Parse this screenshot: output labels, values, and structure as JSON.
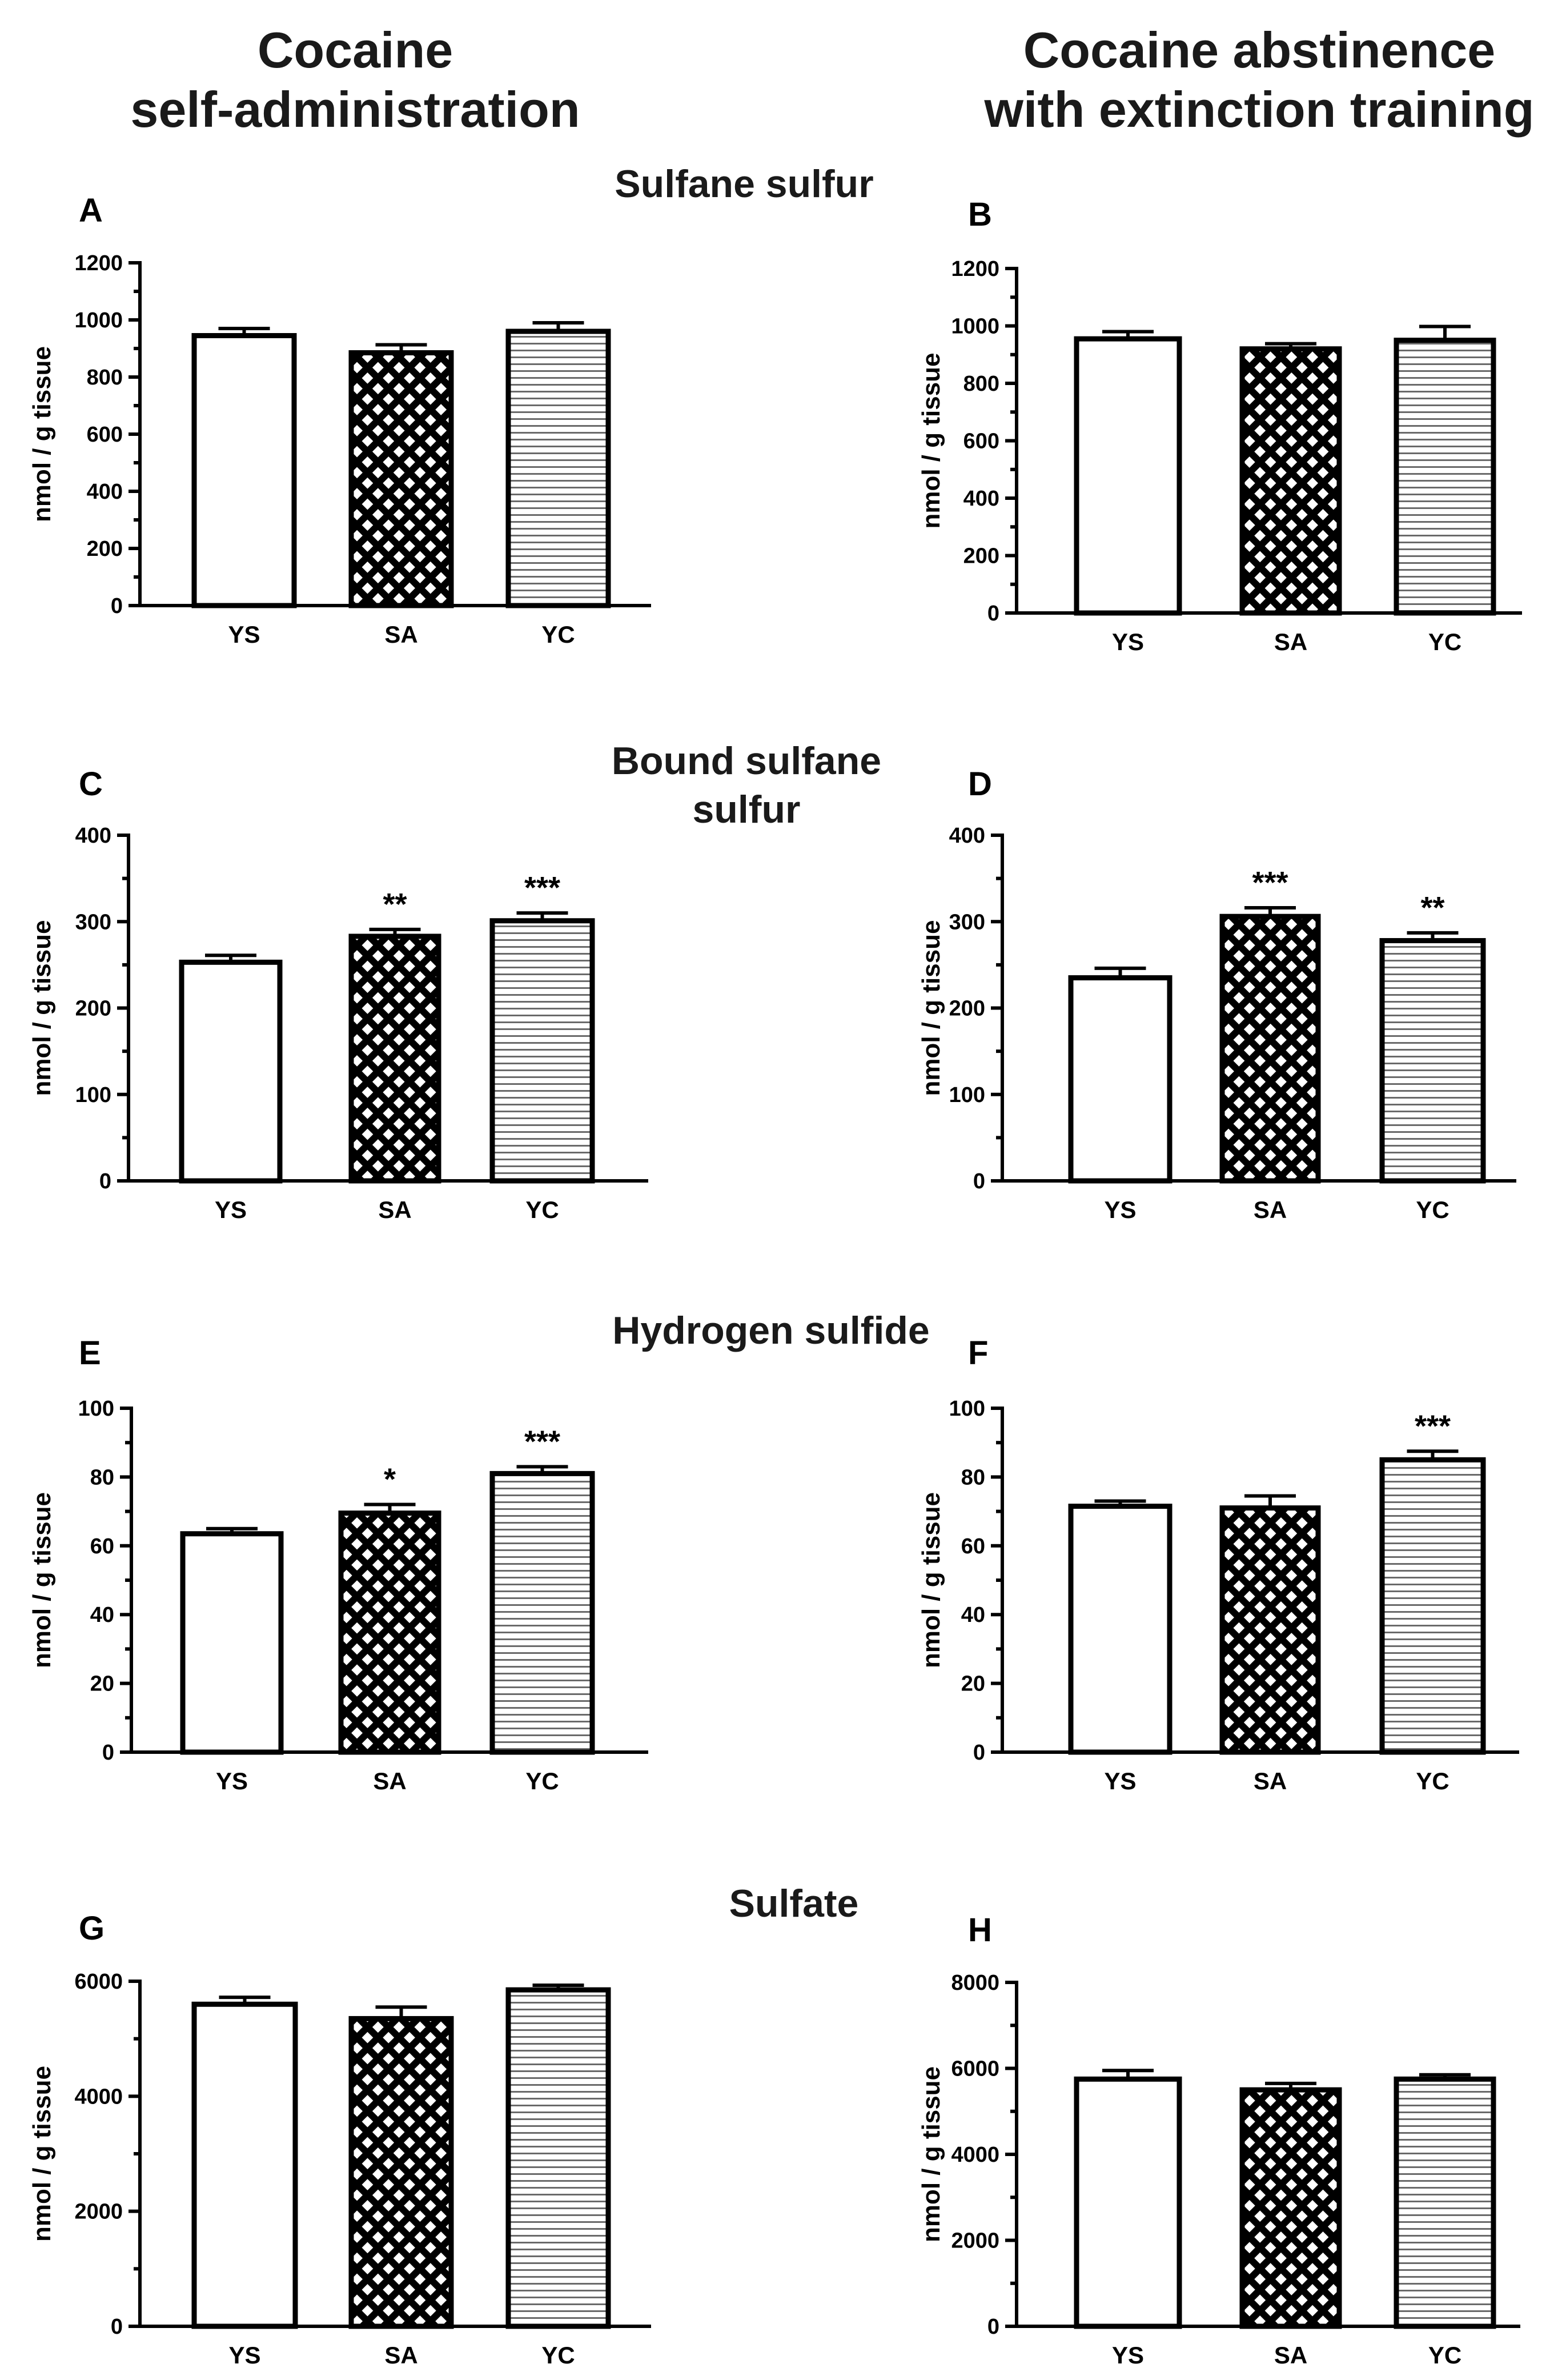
{
  "column_titles": {
    "left": [
      "Cocaine",
      "self-administration"
    ],
    "right": [
      "Cocaine abstinence",
      "with extinction training"
    ]
  },
  "row_titles": [
    [
      "Sulfane sulfur"
    ],
    [
      "Bound sulfane",
      "sulfur"
    ],
    [
      "Hydrogen sulfide"
    ],
    [
      "Sulfate"
    ]
  ],
  "chart_data": [
    {
      "panel": "A",
      "type": "bar",
      "row_title": "Sulfane sulfur",
      "column": "Cocaine self-administration",
      "categories": [
        "YS",
        "SA",
        "YC"
      ],
      "values": [
        945,
        885,
        960
      ],
      "errors": [
        25,
        28,
        30
      ],
      "significance": [
        "",
        "",
        ""
      ],
      "ylabel": "nmol / g tissue",
      "ylim": [
        0,
        1200
      ],
      "yticks": [
        0,
        200,
        400,
        600,
        800,
        1000,
        1200
      ],
      "patterns": [
        "none",
        "crosshatch",
        "hlines"
      ]
    },
    {
      "panel": "B",
      "type": "bar",
      "row_title": "Sulfane sulfur",
      "column": "Cocaine abstinence with extinction training",
      "categories": [
        "YS",
        "SA",
        "YC"
      ],
      "values": [
        955,
        920,
        950
      ],
      "errors": [
        25,
        18,
        48
      ],
      "significance": [
        "",
        "",
        ""
      ],
      "ylabel": "nmol / g tissue",
      "ylim": [
        0,
        1200
      ],
      "yticks": [
        0,
        200,
        400,
        600,
        800,
        1000,
        1200
      ],
      "patterns": [
        "none",
        "crosshatch",
        "hlines"
      ]
    },
    {
      "panel": "C",
      "type": "bar",
      "row_title": "Bound sulfane sulfur",
      "column": "Cocaine self-administration",
      "categories": [
        "YS",
        "SA",
        "YC"
      ],
      "values": [
        253,
        283,
        301
      ],
      "errors": [
        8,
        8,
        9
      ],
      "significance": [
        "",
        "**",
        "***"
      ],
      "ylabel": "nmol / g tissue",
      "ylim": [
        0,
        400
      ],
      "yticks": [
        0,
        100,
        200,
        300,
        400
      ],
      "patterns": [
        "none",
        "crosshatch",
        "hlines"
      ]
    },
    {
      "panel": "D",
      "type": "bar",
      "row_title": "Bound sulfane sulfur",
      "column": "Cocaine abstinence with extinction training",
      "categories": [
        "YS",
        "SA",
        "YC"
      ],
      "values": [
        235,
        306,
        278
      ],
      "errors": [
        11,
        10,
        9
      ],
      "significance": [
        "",
        "***",
        "**"
      ],
      "ylabel": "nmol / g tissue",
      "ylim": [
        0,
        400
      ],
      "yticks": [
        0,
        100,
        200,
        300,
        400
      ],
      "patterns": [
        "none",
        "crosshatch",
        "hlines"
      ]
    },
    {
      "panel": "E",
      "type": "bar",
      "row_title": "Hydrogen sulfide",
      "column": "Cocaine self-administration",
      "categories": [
        "YS",
        "SA",
        "YC"
      ],
      "values": [
        63.5,
        69.5,
        81
      ],
      "errors": [
        1.5,
        2.5,
        2
      ],
      "significance": [
        "",
        "*",
        "***"
      ],
      "ylabel": "nmol / g tissue",
      "ylim": [
        0,
        100
      ],
      "yticks": [
        0,
        20,
        40,
        60,
        80,
        100
      ],
      "patterns": [
        "none",
        "crosshatch",
        "hlines"
      ]
    },
    {
      "panel": "F",
      "type": "bar",
      "row_title": "Hydrogen sulfide",
      "column": "Cocaine abstinence with extinction training",
      "categories": [
        "YS",
        "SA",
        "YC"
      ],
      "values": [
        71.5,
        71,
        85
      ],
      "errors": [
        1.5,
        3.5,
        2.5
      ],
      "significance": [
        "",
        "",
        "***"
      ],
      "ylabel": "nmol / g tissue",
      "ylim": [
        0,
        100
      ],
      "yticks": [
        0,
        20,
        40,
        60,
        80,
        100
      ],
      "patterns": [
        "none",
        "crosshatch",
        "hlines"
      ]
    },
    {
      "panel": "G",
      "type": "bar",
      "row_title": "Sulfate",
      "column": "Cocaine self-administration",
      "categories": [
        "YS",
        "SA",
        "YC"
      ],
      "values": [
        5600,
        5350,
        5850
      ],
      "errors": [
        120,
        200,
        80
      ],
      "significance": [
        "",
        "",
        ""
      ],
      "ylabel": "nmol / g tissue",
      "ylim": [
        0,
        6000
      ],
      "yticks": [
        0,
        2000,
        4000,
        6000
      ],
      "patterns": [
        "none",
        "crosshatch",
        "hlines"
      ]
    },
    {
      "panel": "H",
      "type": "bar",
      "row_title": "Sulfate",
      "column": "Cocaine abstinence with extinction training",
      "categories": [
        "YS",
        "SA",
        "YC"
      ],
      "values": [
        5750,
        5500,
        5750
      ],
      "errors": [
        200,
        150,
        100
      ],
      "significance": [
        "",
        "",
        ""
      ],
      "ylabel": "nmol / g tissue",
      "ylim": [
        0,
        8000
      ],
      "yticks": [
        0,
        2000,
        4000,
        6000,
        8000
      ],
      "patterns": [
        "none",
        "crosshatch",
        "hlines"
      ]
    }
  ]
}
